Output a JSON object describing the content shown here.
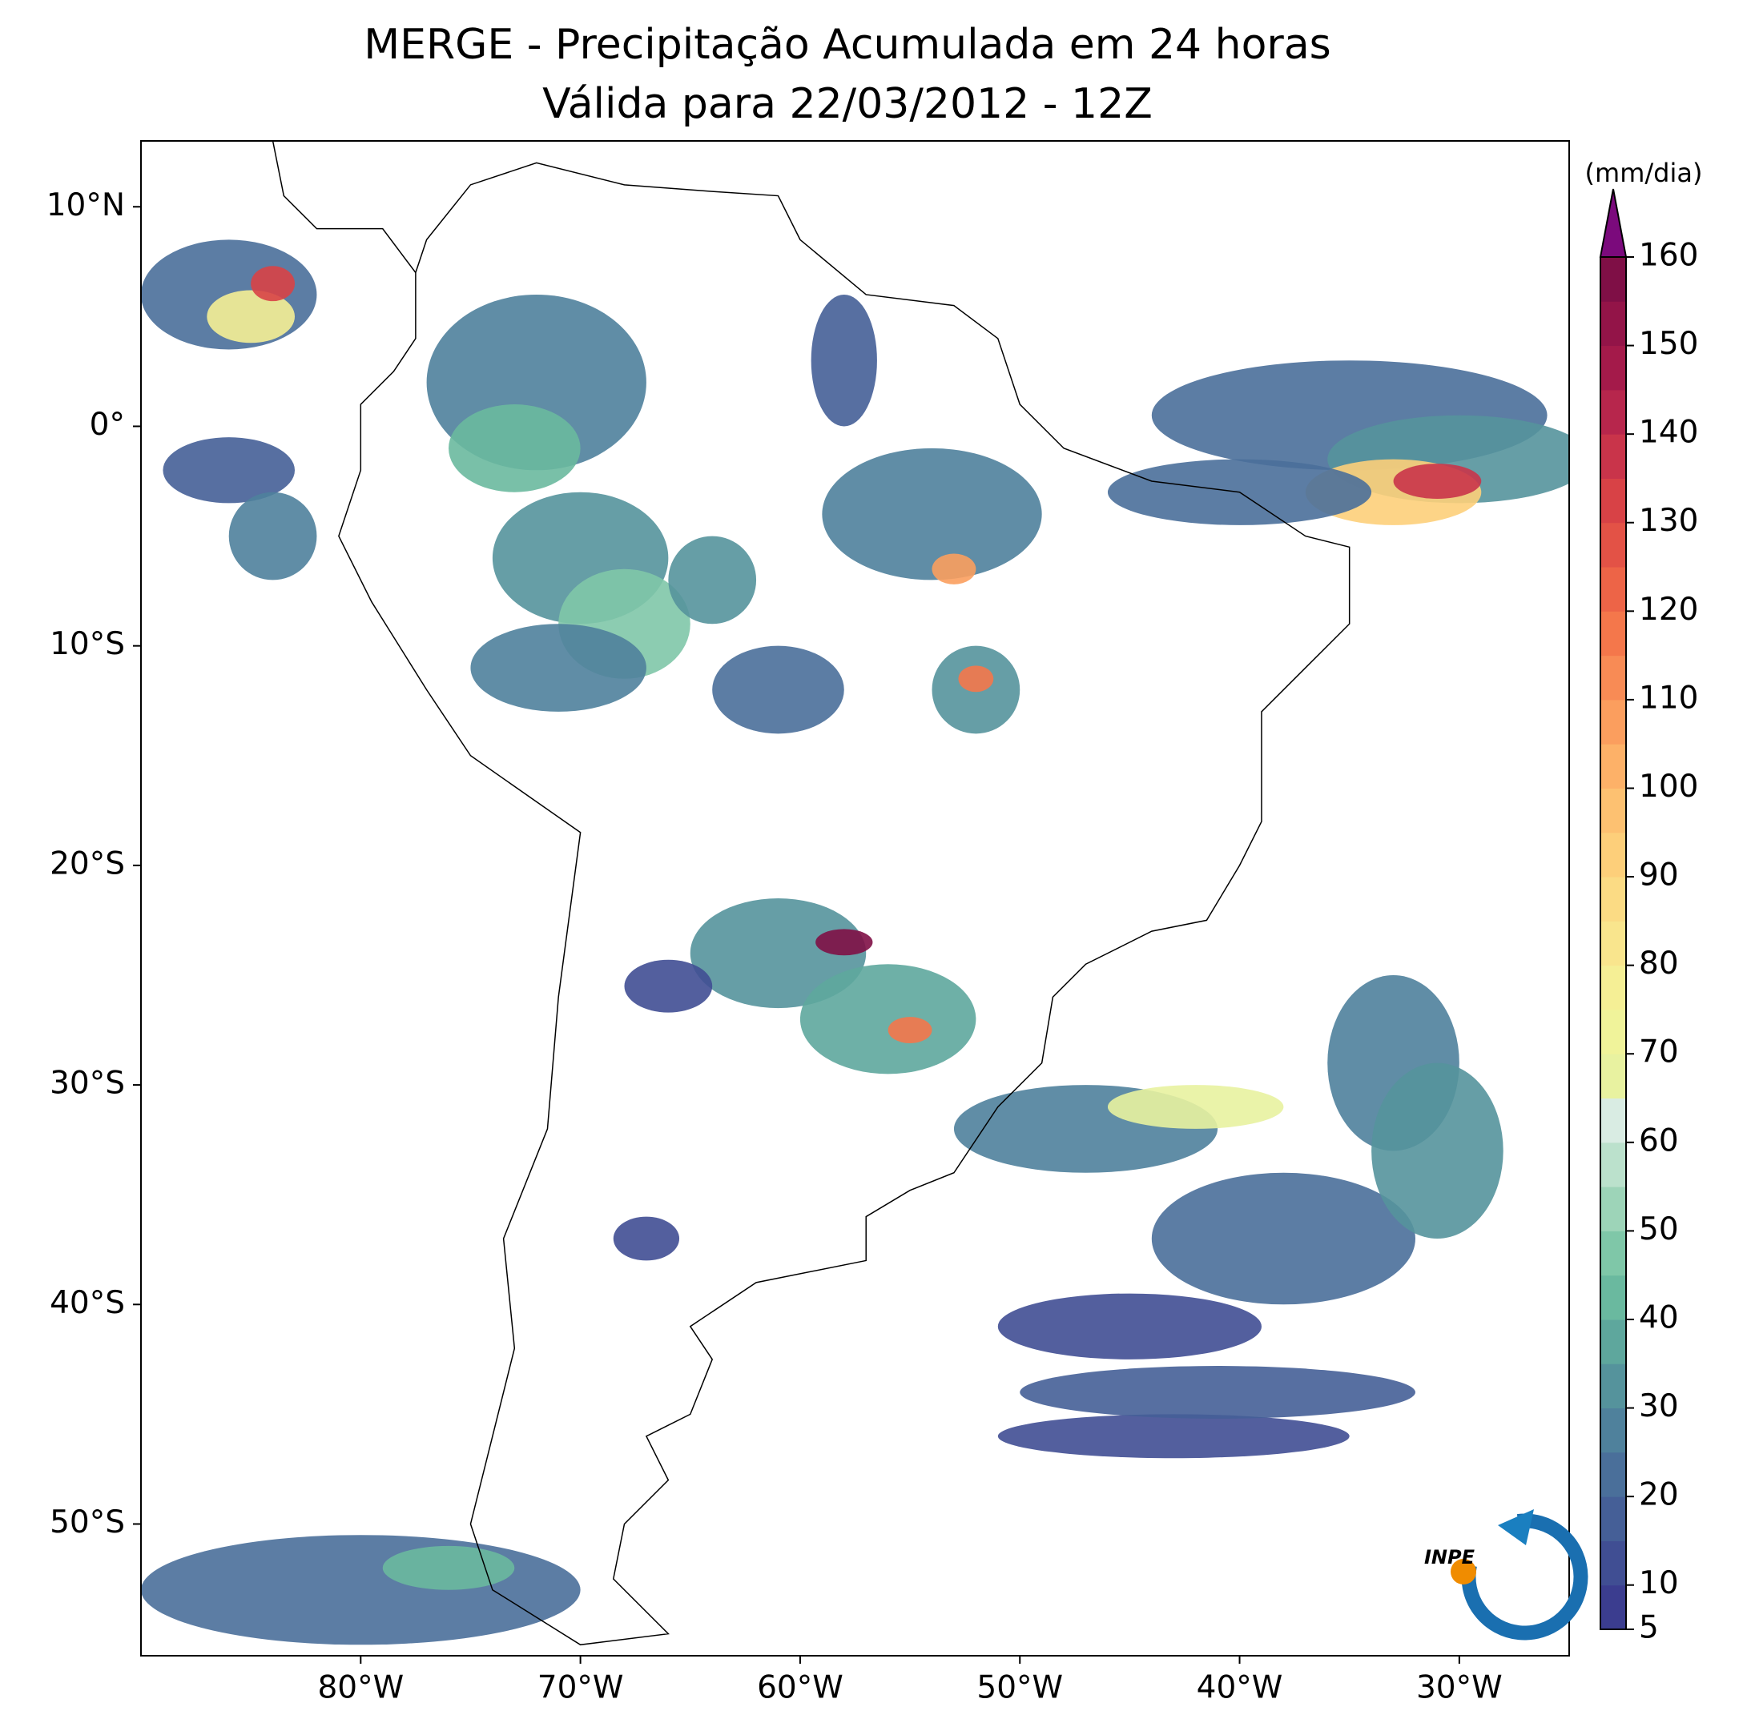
{
  "title": [
    "MERGE - Precipitação Acumulada em 24 horas",
    "Válida para 22/03/2012 - 12Z"
  ],
  "map": {
    "xlim": [
      -90,
      -25
    ],
    "ylim": [
      -56,
      13
    ],
    "xticks": [
      {
        "value": -80,
        "label": "80°W"
      },
      {
        "value": -70,
        "label": "70°W"
      },
      {
        "value": -60,
        "label": "60°W"
      },
      {
        "value": -50,
        "label": "50°W"
      },
      {
        "value": -40,
        "label": "40°W"
      },
      {
        "value": -30,
        "label": "30°W"
      }
    ],
    "yticks": [
      {
        "value": 10,
        "label": "10°N"
      },
      {
        "value": 0,
        "label": "0°"
      },
      {
        "value": -10,
        "label": "10°S"
      },
      {
        "value": -20,
        "label": "20°S"
      },
      {
        "value": -30,
        "label": "30°S"
      },
      {
        "value": -40,
        "label": "40°S"
      },
      {
        "value": -50,
        "label": "50°S"
      }
    ]
  },
  "colorbar": {
    "label": "(mm/dia)",
    "ticks": [
      5,
      10,
      20,
      30,
      40,
      50,
      60,
      70,
      80,
      90,
      100,
      110,
      120,
      130,
      140,
      150,
      160
    ],
    "bounds": [
      5,
      10,
      15,
      20,
      25,
      30,
      35,
      40,
      45,
      50,
      55,
      60,
      65,
      70,
      75,
      80,
      85,
      90,
      95,
      100,
      105,
      110,
      115,
      120,
      125,
      130,
      135,
      140,
      145,
      150,
      155,
      160
    ],
    "colors": [
      "#3b3d8f",
      "#404e93",
      "#455f97",
      "#4a6f9a",
      "#4f819c",
      "#55939c",
      "#5ea79d",
      "#6ab99f",
      "#7fc7a8",
      "#9dd4b8",
      "#bbe1cc",
      "#d9ece3",
      "#e8f2a0",
      "#f0f39a",
      "#f5ef95",
      "#f9e58d",
      "#fbdb84",
      "#fdcf7a",
      "#fdc171",
      "#fdb168",
      "#fb9e5e",
      "#f88b55",
      "#f4774b",
      "#ed6447",
      "#e35246",
      "#d84246",
      "#c9344a",
      "#b7264c",
      "#a41a4a",
      "#931448",
      "#7f0f46"
    ],
    "extend_color": "#7b0a7c"
  },
  "logo": {
    "text": "INPE"
  }
}
